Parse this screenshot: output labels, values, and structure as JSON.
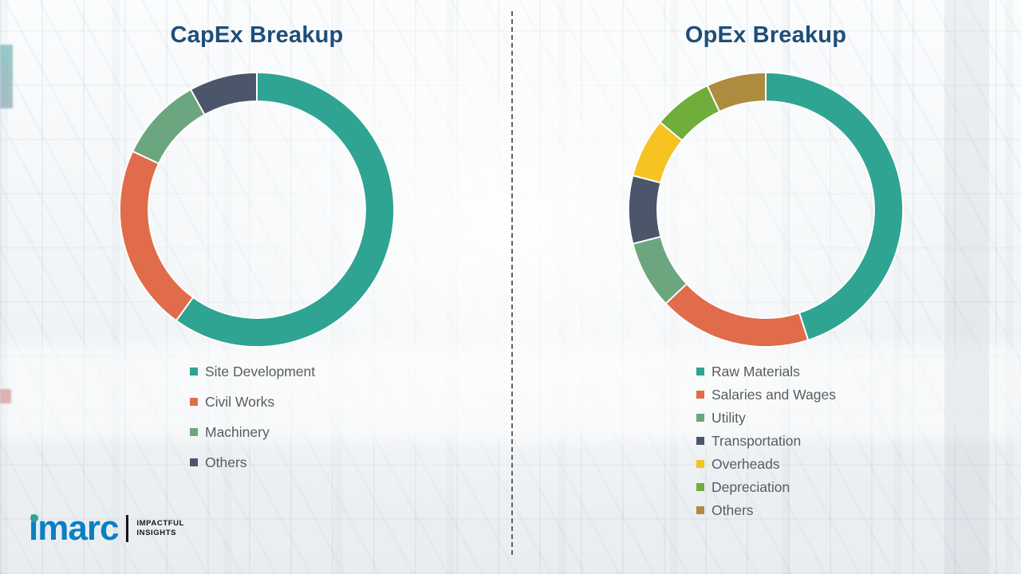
{
  "chart_data": [
    {
      "type": "pie",
      "variant": "donut",
      "title": "CapEx Breakup",
      "labels": [
        "Site Development",
        "Civil Works",
        "Machinery",
        "Others"
      ],
      "values": [
        60,
        22,
        10,
        8
      ],
      "unit": "percent-estimated",
      "colors": [
        "#2FA493",
        "#E06C4B",
        "#6CA67E",
        "#4C566B"
      ],
      "start_angle": "12-oclock",
      "direction": "clockwise",
      "legend_position": "bottom-left"
    },
    {
      "type": "pie",
      "variant": "donut",
      "title": "OpEx Breakup",
      "labels": [
        "Raw Materials",
        "Salaries and Wages",
        "Utility",
        "Transportation",
        "Overheads",
        "Depreciation",
        "Others"
      ],
      "values": [
        45,
        18,
        8,
        8,
        7,
        7,
        7
      ],
      "unit": "percent-estimated",
      "colors": [
        "#2FA493",
        "#E06C4B",
        "#6CA67E",
        "#4C566B",
        "#F6C320",
        "#6FAE3B",
        "#AD8C3F"
      ],
      "start_angle": "12-oclock",
      "direction": "clockwise",
      "legend_position": "bottom-left"
    }
  ],
  "theme": {
    "title_color": "#1F4E79",
    "legend_text_color": "#595c5e",
    "divider_color": "#606060",
    "brand_blue": "#0A80C2",
    "brand_dot_teal": "#2FA493"
  },
  "logo": {
    "brand": "imarc",
    "tagline_line1": "IMPACTFUL",
    "tagline_line2": "INSIGHTS"
  }
}
